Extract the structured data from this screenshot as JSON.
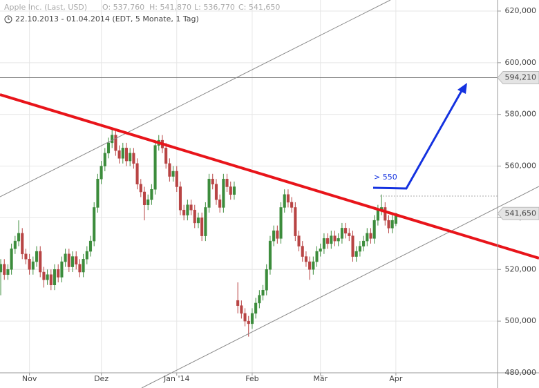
{
  "chart_data": {
    "type": "candlestick",
    "info": [
      "Apple Inc. (Last, USD)",
      "O: 537,760",
      "H: 541,870",
      "L: 536,770",
      "C: 541,650"
    ],
    "subtitle": "22.10.2013 - 01.04.2014 (EDT, 5 Monate, 1 Tag)",
    "up_color": "#3c8c3c",
    "down_color": "#b84444",
    "ylim": [
      480,
      620
    ],
    "yticks": [
      {
        "value": 480,
        "label": "480,000"
      },
      {
        "value": 500,
        "label": "500,000"
      },
      {
        "value": 520,
        "label": "520,000"
      },
      {
        "value": 540,
        "label": "540,000"
      },
      {
        "value": 560,
        "label": "560,000"
      },
      {
        "value": 580,
        "label": "580,000"
      },
      {
        "value": 600,
        "label": "600,000"
      },
      {
        "value": 620,
        "label": "620,000"
      }
    ],
    "xticks": [
      {
        "value": 8,
        "label": "Nov"
      },
      {
        "value": 28,
        "label": "Dez"
      },
      {
        "value": 49,
        "label": "Jan '14"
      },
      {
        "value": 70,
        "label": "Feb"
      },
      {
        "value": 89,
        "label": "Mär"
      },
      {
        "value": 110,
        "label": "Apr"
      }
    ],
    "grid": true,
    "price_tags": [
      {
        "value": 594.21,
        "label": "594,210"
      },
      {
        "value": 541.65,
        "label": "541,650"
      }
    ],
    "annotation": "> 550",
    "ohlc": [
      [
        519,
        524,
        510,
        522
      ],
      [
        522,
        524,
        516,
        518
      ],
      [
        518,
        522,
        516,
        520
      ],
      [
        520,
        530,
        518,
        528
      ],
      [
        528,
        533,
        526,
        531
      ],
      [
        531,
        539,
        529,
        534
      ],
      [
        534,
        536,
        524,
        526
      ],
      [
        526,
        528,
        522,
        524
      ],
      [
        524,
        526,
        518,
        520
      ],
      [
        520,
        525,
        518,
        523
      ],
      [
        523,
        529,
        521,
        527
      ],
      [
        527,
        529,
        517,
        519
      ],
      [
        519,
        521,
        513,
        516
      ],
      [
        516,
        520,
        514,
        518
      ],
      [
        518,
        520,
        512,
        514
      ],
      [
        514,
        522,
        512,
        520
      ],
      [
        520,
        522,
        515,
        517
      ],
      [
        517,
        525,
        515,
        523
      ],
      [
        523,
        528,
        521,
        526
      ],
      [
        526,
        528,
        519,
        521
      ],
      [
        521,
        527,
        519,
        525
      ],
      [
        525,
        527,
        520,
        522
      ],
      [
        522,
        524,
        517,
        519
      ],
      [
        519,
        526,
        517,
        524
      ],
      [
        524,
        529,
        522,
        527
      ],
      [
        527,
        533,
        525,
        531
      ],
      [
        531,
        546,
        529,
        544
      ],
      [
        544,
        557,
        542,
        555
      ],
      [
        555,
        562,
        553,
        560
      ],
      [
        560,
        567,
        558,
        565
      ],
      [
        565,
        571,
        563,
        569
      ],
      [
        569,
        575,
        567,
        572
      ],
      [
        572,
        574,
        564,
        566
      ],
      [
        566,
        568,
        561,
        563
      ],
      [
        563,
        569,
        561,
        567
      ],
      [
        567,
        569,
        560,
        562
      ],
      [
        562,
        567,
        560,
        565
      ],
      [
        565,
        567,
        559,
        561
      ],
      [
        561,
        563,
        551,
        553
      ],
      [
        553,
        555,
        548,
        550
      ],
      [
        550,
        552,
        539,
        545
      ],
      [
        545,
        549,
        543,
        547
      ],
      [
        547,
        553,
        545,
        551
      ],
      [
        551,
        570,
        549,
        568
      ],
      [
        568,
        572,
        566,
        570
      ],
      [
        570,
        572,
        565,
        567
      ],
      [
        567,
        569,
        559,
        561
      ],
      [
        561,
        563,
        554,
        556
      ],
      [
        556,
        560,
        554,
        558
      ],
      [
        558,
        560,
        550,
        552
      ],
      [
        552,
        554,
        541,
        543
      ],
      [
        543,
        545,
        539,
        541
      ],
      [
        541,
        547,
        539,
        545
      ],
      [
        545,
        547,
        541,
        543
      ],
      [
        543,
        545,
        536,
        538
      ],
      [
        538,
        542,
        536,
        540
      ],
      [
        540,
        542,
        531,
        533
      ],
      [
        533,
        546,
        531,
        544
      ],
      [
        544,
        557,
        542,
        555
      ],
      [
        555,
        557,
        551,
        553
      ],
      [
        553,
        555,
        545,
        547
      ],
      [
        547,
        549,
        542,
        544
      ],
      [
        544,
        557,
        542,
        555
      ],
      [
        555,
        557,
        550,
        552
      ],
      [
        552,
        554,
        547,
        549
      ],
      [
        549,
        554,
        547,
        552
      ],
      [
        508,
        515,
        503,
        506
      ],
      [
        506,
        508,
        501,
        503
      ],
      [
        503,
        505,
        498,
        500
      ],
      [
        500,
        502,
        494,
        499
      ],
      [
        499,
        505,
        497,
        503
      ],
      [
        503,
        509,
        501,
        507
      ],
      [
        507,
        512,
        505,
        510
      ],
      [
        510,
        514,
        508,
        512
      ],
      [
        512,
        522,
        510,
        520
      ],
      [
        520,
        533,
        518,
        531
      ],
      [
        531,
        537,
        529,
        535
      ],
      [
        535,
        537,
        530,
        532
      ],
      [
        532,
        546,
        530,
        544
      ],
      [
        544,
        551,
        542,
        549
      ],
      [
        549,
        551,
        544,
        546
      ],
      [
        546,
        548,
        542,
        544
      ],
      [
        544,
        546,
        531,
        533
      ],
      [
        533,
        535,
        527,
        529
      ],
      [
        529,
        531,
        523,
        525
      ],
      [
        525,
        527,
        521,
        523
      ],
      [
        523,
        525,
        516,
        520
      ],
      [
        520,
        525,
        518,
        523
      ],
      [
        523,
        529,
        521,
        527
      ],
      [
        527,
        530,
        525,
        528
      ],
      [
        528,
        534,
        526,
        532
      ],
      [
        532,
        534,
        528,
        530
      ],
      [
        530,
        535,
        528,
        533
      ],
      [
        533,
        535,
        529,
        531
      ],
      [
        531,
        534,
        529,
        532
      ],
      [
        532,
        538,
        530,
        536
      ],
      [
        536,
        538,
        532,
        534
      ],
      [
        534,
        536,
        531,
        533
      ],
      [
        533,
        535,
        523,
        525
      ],
      [
        525,
        529,
        523,
        527
      ],
      [
        527,
        531,
        525,
        529
      ],
      [
        529,
        533,
        527,
        531
      ],
      [
        531,
        536,
        529,
        534
      ],
      [
        534,
        536,
        530,
        532
      ],
      [
        532,
        541,
        530,
        539
      ],
      [
        539,
        545,
        537,
        543
      ],
      [
        543,
        549,
        541,
        544
      ],
      [
        544,
        546,
        537,
        539
      ],
      [
        539,
        541,
        534,
        536
      ],
      [
        536,
        541,
        534,
        539
      ],
      [
        537.76,
        541.87,
        536.77,
        541.65
      ]
    ],
    "xlim": [
      -0.2,
      138.3
    ]
  }
}
